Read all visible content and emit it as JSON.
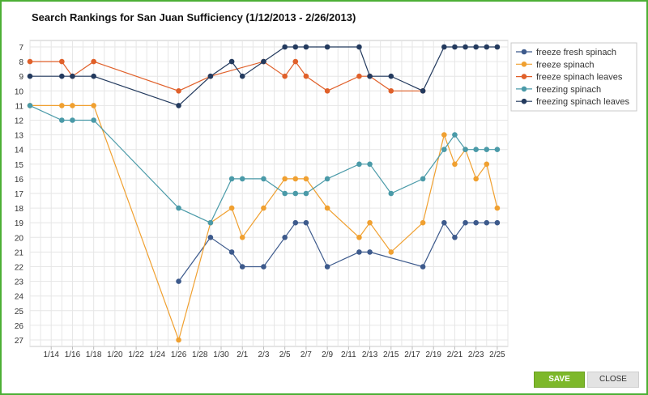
{
  "dialog": {
    "save_label": "SAVE",
    "close_label": "CLOSE",
    "accent_color": "#7db82a"
  },
  "chart_data": {
    "type": "line",
    "title": "Search Rankings for San Juan Sufficiency (1/12/2013 - 2/26/2013)",
    "xlabel": "",
    "ylabel": "",
    "y_reversed": true,
    "ylim": [
      6.5,
      27.5
    ],
    "y_ticks": [
      7,
      8,
      9,
      10,
      11,
      12,
      13,
      14,
      15,
      16,
      17,
      18,
      19,
      20,
      21,
      22,
      23,
      24,
      25,
      26,
      27
    ],
    "x_range": [
      "2013-01-12",
      "2013-02-26"
    ],
    "x_tick_labels": [
      "1/14",
      "1/16",
      "1/18",
      "1/20",
      "1/22",
      "1/24",
      "1/26",
      "1/28",
      "1/30",
      "2/1",
      "2/3",
      "2/5",
      "2/7",
      "2/9",
      "2/11",
      "2/13",
      "2/15",
      "2/17",
      "2/19",
      "2/21",
      "2/23",
      "2/25"
    ],
    "x_tick_dates": [
      "2013-01-14",
      "2013-01-16",
      "2013-01-18",
      "2013-01-20",
      "2013-01-22",
      "2013-01-24",
      "2013-01-26",
      "2013-01-28",
      "2013-01-30",
      "2013-02-01",
      "2013-02-03",
      "2013-02-05",
      "2013-02-07",
      "2013-02-09",
      "2013-02-11",
      "2013-02-13",
      "2013-02-15",
      "2013-02-17",
      "2013-02-19",
      "2013-02-21",
      "2013-02-23",
      "2013-02-25"
    ],
    "grid": true,
    "legend_position": "top-right",
    "series": [
      {
        "name": "freeze fresh spinach",
        "color": "#3d5a8c",
        "points": [
          {
            "x": "2013-01-26",
            "y": 23
          },
          {
            "x": "2013-01-29",
            "y": 20
          },
          {
            "x": "2013-01-31",
            "y": 21
          },
          {
            "x": "2013-02-01",
            "y": 22
          },
          {
            "x": "2013-02-03",
            "y": 22
          },
          {
            "x": "2013-02-05",
            "y": 20
          },
          {
            "x": "2013-02-06",
            "y": 19
          },
          {
            "x": "2013-02-07",
            "y": 19
          },
          {
            "x": "2013-02-09",
            "y": 22
          },
          {
            "x": "2013-02-12",
            "y": 21
          },
          {
            "x": "2013-02-13",
            "y": 21
          },
          {
            "x": "2013-02-18",
            "y": 22
          },
          {
            "x": "2013-02-20",
            "y": 19
          },
          {
            "x": "2013-02-21",
            "y": 20
          },
          {
            "x": "2013-02-22",
            "y": 19
          },
          {
            "x": "2013-02-23",
            "y": 19
          },
          {
            "x": "2013-02-24",
            "y": 19
          },
          {
            "x": "2013-02-25",
            "y": 19
          }
        ]
      },
      {
        "name": "freeze spinach",
        "color": "#f0a030",
        "points": [
          {
            "x": "2013-01-12",
            "y": 11
          },
          {
            "x": "2013-01-15",
            "y": 11
          },
          {
            "x": "2013-01-16",
            "y": 11
          },
          {
            "x": "2013-01-18",
            "y": 11
          },
          {
            "x": "2013-01-26",
            "y": 27
          },
          {
            "x": "2013-01-29",
            "y": 19
          },
          {
            "x": "2013-01-31",
            "y": 18
          },
          {
            "x": "2013-02-01",
            "y": 20
          },
          {
            "x": "2013-02-03",
            "y": 18
          },
          {
            "x": "2013-02-05",
            "y": 16
          },
          {
            "x": "2013-02-06",
            "y": 16
          },
          {
            "x": "2013-02-07",
            "y": 16
          },
          {
            "x": "2013-02-09",
            "y": 18
          },
          {
            "x": "2013-02-12",
            "y": 20
          },
          {
            "x": "2013-02-13",
            "y": 19
          },
          {
            "x": "2013-02-15",
            "y": 21
          },
          {
            "x": "2013-02-18",
            "y": 19
          },
          {
            "x": "2013-02-20",
            "y": 13
          },
          {
            "x": "2013-02-21",
            "y": 15
          },
          {
            "x": "2013-02-22",
            "y": 14
          },
          {
            "x": "2013-02-23",
            "y": 16
          },
          {
            "x": "2013-02-24",
            "y": 15
          },
          {
            "x": "2013-02-25",
            "y": 18
          }
        ]
      },
      {
        "name": "freeze spinach leaves",
        "color": "#e0602a",
        "points": [
          {
            "x": "2013-01-12",
            "y": 8
          },
          {
            "x": "2013-01-15",
            "y": 8
          },
          {
            "x": "2013-01-16",
            "y": 9
          },
          {
            "x": "2013-01-18",
            "y": 8
          },
          {
            "x": "2013-01-26",
            "y": 10
          },
          {
            "x": "2013-01-29",
            "y": 9
          },
          {
            "x": "2013-02-03",
            "y": 8
          },
          {
            "x": "2013-02-05",
            "y": 9
          },
          {
            "x": "2013-02-06",
            "y": 8
          },
          {
            "x": "2013-02-07",
            "y": 9
          },
          {
            "x": "2013-02-09",
            "y": 10
          },
          {
            "x": "2013-02-12",
            "y": 9
          },
          {
            "x": "2013-02-13",
            "y": 9
          },
          {
            "x": "2013-02-15",
            "y": 10
          },
          {
            "x": "2013-02-18",
            "y": 10
          }
        ]
      },
      {
        "name": "freezing spinach",
        "color": "#4a9aa8",
        "points": [
          {
            "x": "2013-01-12",
            "y": 11
          },
          {
            "x": "2013-01-15",
            "y": 12
          },
          {
            "x": "2013-01-16",
            "y": 12
          },
          {
            "x": "2013-01-18",
            "y": 12
          },
          {
            "x": "2013-01-26",
            "y": 18
          },
          {
            "x": "2013-01-29",
            "y": 19
          },
          {
            "x": "2013-01-31",
            "y": 16
          },
          {
            "x": "2013-02-01",
            "y": 16
          },
          {
            "x": "2013-02-03",
            "y": 16
          },
          {
            "x": "2013-02-05",
            "y": 17
          },
          {
            "x": "2013-02-06",
            "y": 17
          },
          {
            "x": "2013-02-07",
            "y": 17
          },
          {
            "x": "2013-02-09",
            "y": 16
          },
          {
            "x": "2013-02-12",
            "y": 15
          },
          {
            "x": "2013-02-13",
            "y": 15
          },
          {
            "x": "2013-02-15",
            "y": 17
          },
          {
            "x": "2013-02-18",
            "y": 16
          },
          {
            "x": "2013-02-20",
            "y": 14
          },
          {
            "x": "2013-02-21",
            "y": 13
          },
          {
            "x": "2013-02-22",
            "y": 14
          },
          {
            "x": "2013-02-23",
            "y": 14
          },
          {
            "x": "2013-02-24",
            "y": 14
          },
          {
            "x": "2013-02-25",
            "y": 14
          }
        ]
      },
      {
        "name": "freezing spinach leaves",
        "color": "#233a5e",
        "points": [
          {
            "x": "2013-01-12",
            "y": 9
          },
          {
            "x": "2013-01-15",
            "y": 9
          },
          {
            "x": "2013-01-16",
            "y": 9
          },
          {
            "x": "2013-01-18",
            "y": 9
          },
          {
            "x": "2013-01-26",
            "y": 11
          },
          {
            "x": "2013-01-29",
            "y": 9
          },
          {
            "x": "2013-01-31",
            "y": 8
          },
          {
            "x": "2013-02-01",
            "y": 9
          },
          {
            "x": "2013-02-03",
            "y": 8
          },
          {
            "x": "2013-02-05",
            "y": 7
          },
          {
            "x": "2013-02-06",
            "y": 7
          },
          {
            "x": "2013-02-07",
            "y": 7
          },
          {
            "x": "2013-02-09",
            "y": 7
          },
          {
            "x": "2013-02-12",
            "y": 7
          },
          {
            "x": "2013-02-13",
            "y": 9
          },
          {
            "x": "2013-02-15",
            "y": 9
          },
          {
            "x": "2013-02-18",
            "y": 10
          },
          {
            "x": "2013-02-20",
            "y": 7
          },
          {
            "x": "2013-02-21",
            "y": 7
          },
          {
            "x": "2013-02-22",
            "y": 7
          },
          {
            "x": "2013-02-23",
            "y": 7
          },
          {
            "x": "2013-02-24",
            "y": 7
          },
          {
            "x": "2013-02-25",
            "y": 7
          }
        ]
      }
    ]
  }
}
